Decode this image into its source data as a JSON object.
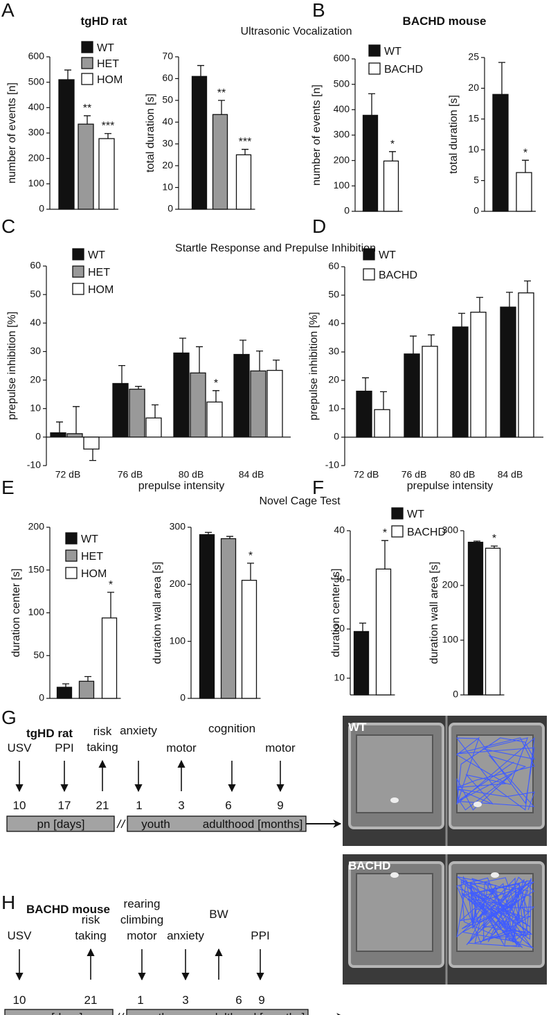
{
  "panels": [
    {
      "letter": "A",
      "heading": "tgHD rat"
    },
    {
      "letter": "B",
      "heading": "BACHD mouse"
    },
    {
      "letter": "C"
    },
    {
      "letter": "D"
    },
    {
      "letter": "E"
    },
    {
      "letter": "F"
    },
    {
      "letter": "G"
    },
    {
      "letter": "H"
    }
  ],
  "sections": [
    "Ultrasonic Vocalization",
    "Startle Response and Prepulse Inhibition",
    "Novel Cage Test"
  ],
  "chart_data": [
    {
      "type": "bar",
      "ylabel": "number of events [n]",
      "ylim": [
        0,
        600
      ],
      "yticks": [
        0,
        100,
        200,
        300,
        400,
        500,
        600
      ],
      "series": [
        {
          "name": "WT",
          "color": "#111111",
          "values": [
            510
          ],
          "errors": [
            38
          ]
        },
        {
          "name": "HET",
          "color": "#999999",
          "values": [
            335
          ],
          "errors": [
            33
          ],
          "annotations": [
            "**"
          ]
        },
        {
          "name": "HOM",
          "color": "#ffffff",
          "values": [
            278
          ],
          "errors": [
            20
          ],
          "annotations": [
            "***"
          ]
        }
      ]
    },
    {
      "type": "bar",
      "ylabel": "total duration [s]",
      "ylim": [
        0,
        70
      ],
      "yticks": [
        0,
        10,
        20,
        30,
        40,
        50,
        60,
        70
      ],
      "series": [
        {
          "color": "#111111",
          "values": [
            61
          ],
          "errors": [
            5
          ]
        },
        {
          "color": "#999999",
          "values": [
            43.5
          ],
          "errors": [
            6.5
          ],
          "annotations": [
            "**"
          ]
        },
        {
          "color": "#ffffff",
          "values": [
            25
          ],
          "errors": [
            2.5
          ],
          "annotations": [
            "***"
          ]
        }
      ]
    },
    {
      "type": "bar",
      "ylabel": "number of events [n]",
      "ylim": [
        0,
        600
      ],
      "yticks": [
        0,
        100,
        200,
        300,
        400,
        500,
        600
      ],
      "series": [
        {
          "name": "WT",
          "color": "#111111",
          "values": [
            378
          ],
          "errors": [
            85
          ]
        },
        {
          "name": "BACHD",
          "color": "#ffffff",
          "values": [
            198
          ],
          "errors": [
            37
          ],
          "annotations": [
            "*"
          ]
        }
      ]
    },
    {
      "type": "bar",
      "ylabel": "total duration [s]",
      "ylim": [
        0,
        25
      ],
      "yticks": [
        0,
        5,
        10,
        15,
        20,
        25
      ],
      "series": [
        {
          "color": "#111111",
          "values": [
            19
          ],
          "errors": [
            5.2
          ]
        },
        {
          "color": "#ffffff",
          "values": [
            6.3
          ],
          "errors": [
            2
          ],
          "annotations": [
            "*"
          ]
        }
      ]
    },
    {
      "type": "bar",
      "categories": [
        "72 dB",
        "76 dB",
        "80 dB",
        "84 dB"
      ],
      "xlabel": "prepulse intensity",
      "ylabel": "prepulse inhibition [%]",
      "ylim": [
        -10,
        60
      ],
      "yticks": [
        -10,
        0,
        10,
        20,
        30,
        40,
        50,
        60
      ],
      "series": [
        {
          "name": "WT",
          "color": "#111111",
          "values": [
            1.5,
            18.8,
            29.5,
            29
          ],
          "errors": [
            3.8,
            6.3,
            5.2,
            5
          ]
        },
        {
          "name": "HET",
          "color": "#999999",
          "values": [
            1.2,
            16.8,
            22.5,
            23.2
          ],
          "errors": [
            9.5,
            1,
            9.2,
            7
          ]
        },
        {
          "name": "HOM",
          "color": "#ffffff",
          "values": [
            -4.2,
            6.7,
            12.3,
            23.4
          ],
          "errors": [
            4,
            4.6,
            4,
            3.6
          ],
          "annotations": [
            null,
            null,
            "*",
            null
          ]
        }
      ]
    },
    {
      "type": "bar",
      "categories": [
        "72 dB",
        "76 dB",
        "80 dB",
        "84 dB"
      ],
      "xlabel": "prepulse intensity",
      "ylabel": "prepulse inhibition [%]",
      "ylim": [
        -10,
        60
      ],
      "yticks": [
        -10,
        0,
        10,
        20,
        30,
        40,
        50,
        60
      ],
      "series": [
        {
          "name": "WT",
          "color": "#111111",
          "values": [
            16.2,
            29.3,
            38.8,
            45.8
          ],
          "errors": [
            4.7,
            6.3,
            4.8,
            5.2
          ]
        },
        {
          "name": "BACHD",
          "color": "#ffffff",
          "values": [
            9.7,
            32,
            44,
            50.8
          ],
          "errors": [
            6.3,
            4,
            5.2,
            4.2
          ]
        }
      ]
    },
    {
      "type": "bar",
      "ylabel": "duration center [s]",
      "ylim": [
        0,
        200
      ],
      "yticks": [
        0,
        50,
        100,
        150,
        200
      ],
      "series": [
        {
          "name": "WT",
          "color": "#111111",
          "values": [
            13
          ],
          "errors": [
            4
          ]
        },
        {
          "name": "HET",
          "color": "#999999",
          "values": [
            20
          ],
          "errors": [
            5.5
          ]
        },
        {
          "name": "HOM",
          "color": "#ffffff",
          "values": [
            94
          ],
          "errors": [
            30
          ],
          "annotations": [
            "*"
          ]
        }
      ]
    },
    {
      "type": "bar",
      "ylabel": "duration wall area [s]",
      "ylim": [
        0,
        300
      ],
      "yticks": [
        0,
        100,
        200,
        300
      ],
      "series": [
        {
          "color": "#111111",
          "values": [
            287
          ],
          "errors": [
            4
          ]
        },
        {
          "color": "#999999",
          "values": [
            280
          ],
          "errors": [
            4
          ]
        },
        {
          "color": "#ffffff",
          "values": [
            207
          ],
          "errors": [
            30
          ],
          "annotations": [
            "*"
          ]
        }
      ]
    },
    {
      "type": "bar",
      "ylabel": "duration center [s]",
      "ylim": [
        6.6,
        40
      ],
      "yticks": [
        10,
        20,
        30,
        40
      ],
      "series": [
        {
          "name": "WT",
          "color": "#111111",
          "values": [
            19.5
          ],
          "errors": [
            1.7
          ]
        },
        {
          "name": "BACHD",
          "color": "#ffffff",
          "values": [
            32.2
          ],
          "errors": [
            5.8
          ],
          "annotations": [
            "*"
          ]
        }
      ]
    },
    {
      "type": "bar",
      "ylabel": "duration wall area [s]",
      "ylim": [
        0,
        300
      ],
      "yticks": [
        0,
        100,
        200,
        300
      ],
      "series": [
        {
          "color": "#111111",
          "values": [
            279
          ],
          "errors": [
            2
          ]
        },
        {
          "color": "#ffffff",
          "values": [
            268
          ],
          "errors": [
            4
          ],
          "annotations": [
            "*"
          ]
        }
      ]
    }
  ],
  "timelines": [
    {
      "title": "tgHD rat",
      "events": [
        {
          "label": [
            "USV"
          ],
          "direction": "down"
        },
        {
          "label": [
            "PPI"
          ],
          "direction": "down"
        },
        {
          "label": [
            "risk",
            "taking"
          ],
          "direction": "up"
        },
        {
          "label": [
            "anxiety"
          ],
          "direction": "down"
        },
        {
          "label": [
            "motor"
          ],
          "direction": "up"
        },
        {
          "label": [
            "cognition"
          ],
          "direction": "down"
        },
        {
          "label": [
            "motor"
          ],
          "direction": "down"
        }
      ],
      "ticks": [
        "10",
        "17",
        "21",
        "1",
        "3",
        "6",
        "9"
      ],
      "bars": [
        [
          "pn [days]"
        ],
        [
          "youth",
          "adulthood [months]"
        ]
      ]
    },
    {
      "title": "BACHD mouse",
      "events": [
        {
          "label": [
            "USV"
          ],
          "direction": "down"
        },
        {
          "label": [
            "risk",
            "taking"
          ],
          "direction": "up"
        },
        {
          "label": [
            "rearing",
            "climbing",
            "motor"
          ],
          "direction": "down"
        },
        {
          "label": [
            "anxiety"
          ],
          "direction": "down"
        },
        {
          "label": [
            "BW"
          ],
          "direction": "up"
        },
        {
          "label": [
            "PPI"
          ],
          "direction": "down"
        }
      ],
      "ticks": [
        "10",
        "21",
        "1",
        "3",
        "6",
        "9"
      ],
      "bars": [
        [
          "pn [days]"
        ],
        [
          "youth",
          "adulthood [months]"
        ]
      ]
    }
  ],
  "photos": [
    {
      "label": "WT"
    },
    {
      "label": "BACHD"
    }
  ]
}
